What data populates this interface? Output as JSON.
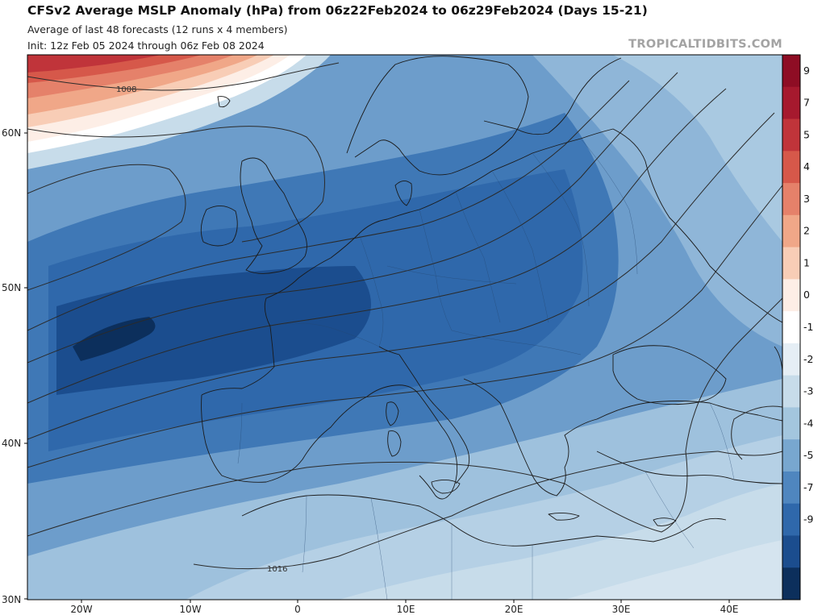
{
  "header": {
    "title": "CFSv2 Average MSLP Anomaly (hPa) from 06z22Feb2024 to 06z29Feb2024 (Days 15-21)",
    "subtitle_1": "Average of last 48 forecasts (12 runs x 4 members)",
    "subtitle_2": "Init: 12z Feb 05 2024 through 06z Feb 08 2024",
    "watermark": "TROPICALTIDBITS.COM"
  },
  "map": {
    "region": "Europe / North Africa",
    "lat_labels": [
      "60N",
      "50N",
      "40N",
      "30N"
    ],
    "lon_labels": [
      "20W",
      "10W",
      "0",
      "10E",
      "20E",
      "30E",
      "40E"
    ],
    "isobar_labels": [
      "1008",
      "1016"
    ],
    "colors": {
      "positive_strong": "#a6192e",
      "positive_weak": "#fbe3d9",
      "neutral": "#ffffff",
      "negative_weak": "#c7dcea",
      "negative_strong": "#0c2f5c",
      "land_outline": "#1a1a1a",
      "isobar": "#2a2a2a"
    }
  },
  "colorbar": {
    "labels": [
      "9",
      "7",
      "5",
      "4",
      "3",
      "2",
      "1",
      "0",
      "-1",
      "-2",
      "-3",
      "-4",
      "-5",
      "-7",
      "-9"
    ],
    "colors": [
      "#8e0d24",
      "#a6192e",
      "#c0343a",
      "#d6584a",
      "#e5816a",
      "#f0a788",
      "#f8cdb6",
      "#fdeee6",
      "#ffffff",
      "#e5eef5",
      "#c7dcea",
      "#a3c6de",
      "#78a7cf",
      "#4f86bf",
      "#2f68ab",
      "#1b4d8e",
      "#0c2f5c"
    ]
  }
}
